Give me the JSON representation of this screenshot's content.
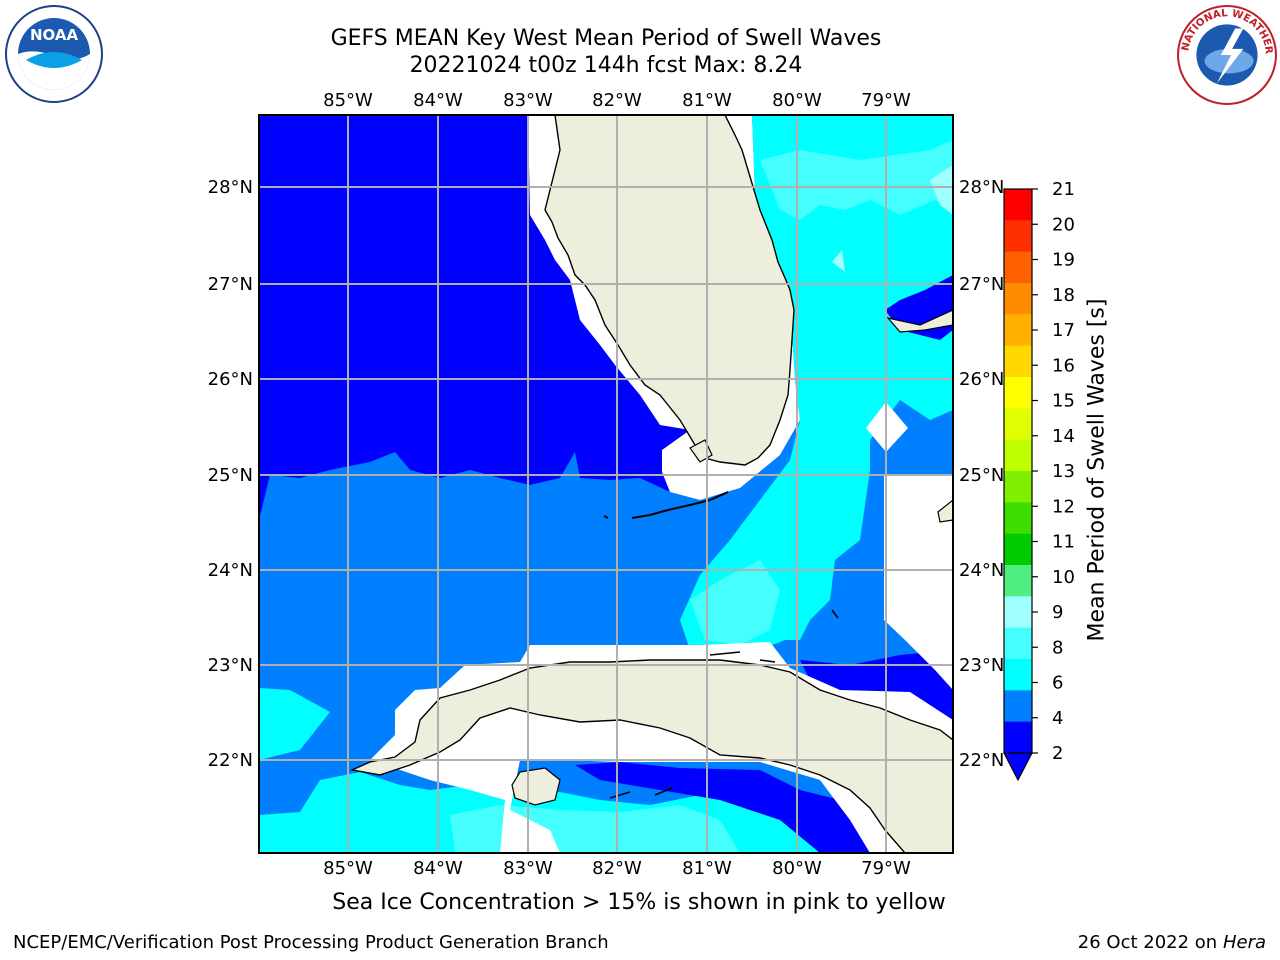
{
  "header": {
    "title_line1": "GEFS MEAN Key West Mean Period of Swell Waves",
    "title_line2": "20221024 t00z 144h fcst   Max: 8.24"
  },
  "map": {
    "lon_labels": [
      "85°W",
      "84°W",
      "83°W",
      "82°W",
      "81°W",
      "80°W",
      "79°W"
    ],
    "lat_labels": [
      "28°N",
      "27°N",
      "26°N",
      "25°N",
      "24°N",
      "23°N",
      "22°N"
    ],
    "colors": {
      "land": "#eeeedd",
      "band_2_4": "#0000ff",
      "band_4_6": "#0080ff",
      "band_6_8": "#00ffff",
      "band_8_9": "#45ffff",
      "band_9_10": "#a0ffff",
      "grid": "#b0b0b0"
    }
  },
  "colorbar": {
    "title": "Mean Period of Swell Waves [s]",
    "ticks": [
      "21",
      "20",
      "19",
      "18",
      "17",
      "16",
      "15",
      "14",
      "13",
      "12",
      "11",
      "10",
      "9",
      "8",
      "6",
      "4",
      "2"
    ],
    "colors": [
      "#ff0000",
      "#ff3000",
      "#ff6000",
      "#ff8c00",
      "#ffb000",
      "#ffd800",
      "#ffff00",
      "#e0ff00",
      "#c0ff00",
      "#80ee00",
      "#40dd00",
      "#00cc00",
      "#50ee80",
      "#a0ffff",
      "#45ffff",
      "#00ffff",
      "#0080ff",
      "#0000ff"
    ]
  },
  "notes": {
    "ice": "Sea Ice Concentration > 15% is shown in pink to yellow",
    "footer_left": "NCEP/EMC/Verification Post Processing Product Generation Branch",
    "footer_date": "26 Oct 2022 on",
    "footer_machine": "Hera"
  },
  "logos": {
    "noaa_text": "NOAA",
    "nws_text": "NATIONAL WEATHER SERVICE"
  }
}
